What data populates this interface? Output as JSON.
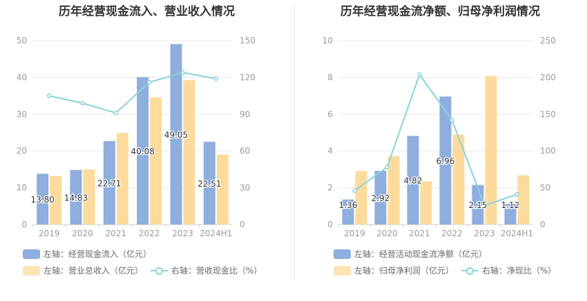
{
  "colors": {
    "bar1": "#8eaedd",
    "bar2": "#fddb9c",
    "line": "#88d3db",
    "grid": "#e8e8e8",
    "axis": "#999999",
    "title": "#333333"
  },
  "chart_data": [
    {
      "type": "bar",
      "title": "历年经营现金流入、营业收入情况",
      "categories": [
        "2019",
        "2020",
        "2021",
        "2022",
        "2023",
        "2024H1"
      ],
      "left_axis": {
        "ylim": [
          0,
          50
        ],
        "ticks": [
          "0",
          "10",
          "20",
          "30",
          "40",
          "50"
        ]
      },
      "right_axis": {
        "ylim": [
          0,
          150
        ],
        "ticks": [
          "0",
          "30",
          "60",
          "90",
          "120",
          "150"
        ]
      },
      "series": [
        {
          "name": "左轴：经营现金流入（亿元）",
          "axis": "left",
          "kind": "bar",
          "values": [
            13.8,
            14.83,
            22.71,
            40.08,
            49.05,
            22.51
          ],
          "labels": [
            "13.80",
            "14.83",
            "22.71",
            "40.08",
            "49.05",
            "22.51"
          ]
        },
        {
          "name": "左轴：营业总收入（亿元）",
          "axis": "left",
          "kind": "bar",
          "values": [
            13.2,
            15.0,
            24.9,
            34.6,
            39.3,
            19.0
          ]
        },
        {
          "name": "右轴：营收现金比（%）",
          "axis": "right",
          "kind": "line",
          "values": [
            105,
            99,
            91,
            116,
            124,
            119
          ]
        }
      ]
    },
    {
      "type": "bar",
      "title": "历年经营现金流净额、归母净利润情况",
      "categories": [
        "2019",
        "2020",
        "2021",
        "2022",
        "2023",
        "2024H1"
      ],
      "left_axis": {
        "ylim": [
          0,
          10
        ],
        "ticks": [
          "0",
          "2",
          "4",
          "6",
          "8",
          "10"
        ]
      },
      "right_axis": {
        "ylim": [
          0,
          250
        ],
        "ticks": [
          "0",
          "50",
          "100",
          "150",
          "200",
          "250"
        ]
      },
      "series": [
        {
          "name": "左轴：经营活动现金流净额（亿元）",
          "axis": "left",
          "kind": "bar",
          "values": [
            1.36,
            2.92,
            4.82,
            6.96,
            2.15,
            1.12
          ],
          "labels": [
            "1.36",
            "2.92",
            "4.82",
            "6.96",
            "2.15",
            "1.12"
          ]
        },
        {
          "name": "左轴：归母净利润（亿元）",
          "axis": "left",
          "kind": "bar",
          "values": [
            2.92,
            3.72,
            2.36,
            4.88,
            8.08,
            2.68
          ]
        },
        {
          "name": "右轴：净现比（%）",
          "axis": "right",
          "kind": "line",
          "values": [
            46,
            78,
            204,
            142,
            26,
            41
          ]
        }
      ]
    }
  ]
}
